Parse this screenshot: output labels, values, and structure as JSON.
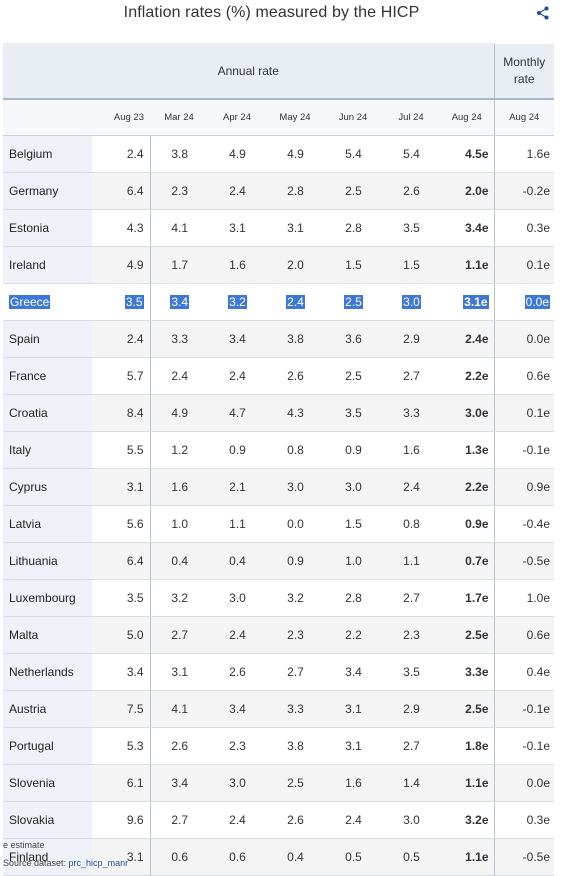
{
  "title": "Inflation rates (%) measured by the HICP",
  "share_icon": "share-icon",
  "header": {
    "annual_label": "Annual rate",
    "monthly_label_line1": "Monthly",
    "monthly_label_line2": "rate",
    "columns": [
      "Aug 23",
      "Mar 24",
      "Apr 24",
      "May 24",
      "Jun 24",
      "Jul 24",
      "Aug 24",
      "Aug 24"
    ]
  },
  "rows": [
    {
      "country": "Belgium",
      "v": [
        "2.4",
        "3.8",
        "4.9",
        "4.9",
        "5.4",
        "5.4",
        "4.5e",
        "1.6e"
      ]
    },
    {
      "country": "Germany",
      "v": [
        "6.4",
        "2.3",
        "2.4",
        "2.8",
        "2.5",
        "2.6",
        "2.0e",
        "-0.2e"
      ]
    },
    {
      "country": "Estonia",
      "v": [
        "4.3",
        "4.1",
        "3.1",
        "3.1",
        "2.8",
        "3.5",
        "3.4e",
        "0.3e"
      ]
    },
    {
      "country": "Ireland",
      "v": [
        "4.9",
        "1.7",
        "1.6",
        "2.0",
        "1.5",
        "1.5",
        "1.1e",
        "0.1e"
      ]
    },
    {
      "country": "Greece",
      "v": [
        "3.5",
        "3.4",
        "3.2",
        "2.4",
        "2.5",
        "3.0",
        "3.1e",
        "0.0e"
      ]
    },
    {
      "country": "Spain",
      "v": [
        "2.4",
        "3.3",
        "3.4",
        "3.8",
        "3.6",
        "2.9",
        "2.4e",
        "0.0e"
      ]
    },
    {
      "country": "France",
      "v": [
        "5.7",
        "2.4",
        "2.4",
        "2.6",
        "2.5",
        "2.7",
        "2.2e",
        "0.6e"
      ]
    },
    {
      "country": "Croatia",
      "v": [
        "8.4",
        "4.9",
        "4.7",
        "4.3",
        "3.5",
        "3.3",
        "3.0e",
        "0.1e"
      ]
    },
    {
      "country": "Italy",
      "v": [
        "5.5",
        "1.2",
        "0.9",
        "0.8",
        "0.9",
        "1.6",
        "1.3e",
        "-0.1e"
      ]
    },
    {
      "country": "Cyprus",
      "v": [
        "3.1",
        "1.6",
        "2.1",
        "3.0",
        "3.0",
        "2.4",
        "2.2e",
        "0.9e"
      ]
    },
    {
      "country": "Latvia",
      "v": [
        "5.6",
        "1.0",
        "1.1",
        "0.0",
        "1.5",
        "0.8",
        "0.9e",
        "-0.4e"
      ]
    },
    {
      "country": "Lithuania",
      "v": [
        "6.4",
        "0.4",
        "0.4",
        "0.9",
        "1.0",
        "1.1",
        "0.7e",
        "-0.5e"
      ]
    },
    {
      "country": "Luxembourg",
      "v": [
        "3.5",
        "3.2",
        "3.0",
        "3.2",
        "2.8",
        "2.7",
        "1.7e",
        "1.0e"
      ]
    },
    {
      "country": "Malta",
      "v": [
        "5.0",
        "2.7",
        "2.4",
        "2.3",
        "2.2",
        "2.3",
        "2.5e",
        "0.6e"
      ]
    },
    {
      "country": "Netherlands",
      "v": [
        "3.4",
        "3.1",
        "2.6",
        "2.7",
        "3.4",
        "3.5",
        "3.3e",
        "0.4e"
      ]
    },
    {
      "country": "Austria",
      "v": [
        "7.5",
        "4.1",
        "3.4",
        "3.3",
        "3.1",
        "2.9",
        "2.5e",
        "-0.1e"
      ]
    },
    {
      "country": "Portugal",
      "v": [
        "5.3",
        "2.6",
        "2.3",
        "3.8",
        "3.1",
        "2.7",
        "1.8e",
        "-0.1e"
      ]
    },
    {
      "country": "Slovenia",
      "v": [
        "6.1",
        "3.4",
        "3.0",
        "2.5",
        "1.6",
        "1.4",
        "1.1e",
        "0.0e"
      ]
    },
    {
      "country": "Slovakia",
      "v": [
        "9.6",
        "2.7",
        "2.4",
        "2.6",
        "2.4",
        "3.0",
        "3.2e",
        "0.3e"
      ]
    },
    {
      "country": "Finland",
      "v": [
        "3.1",
        "0.6",
        "0.6",
        "0.4",
        "0.5",
        "0.5",
        "1.1e",
        "-0.5e"
      ]
    }
  ],
  "highlight_country": "Greece",
  "highlight_color": "#3d78d8",
  "footer": {
    "note": "e estimate",
    "source_prefix": "Source dataset: ",
    "source_link": "prc_hicp_manr"
  }
}
